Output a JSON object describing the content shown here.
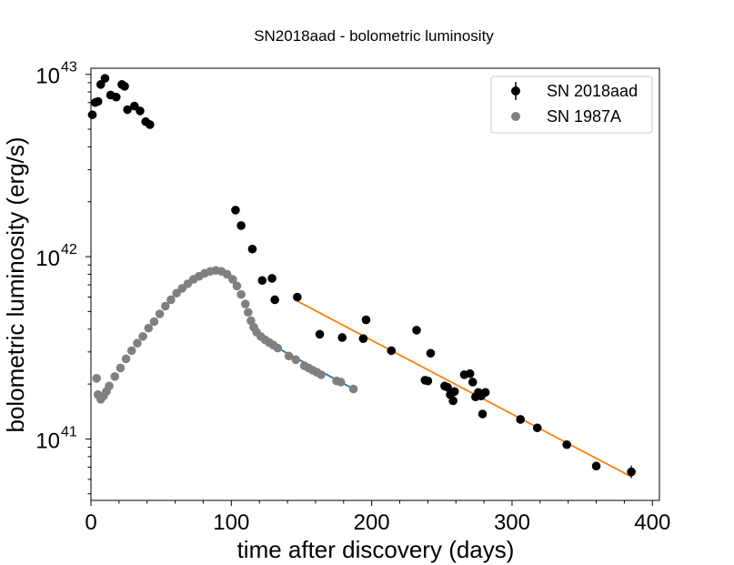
{
  "chart_data": {
    "type": "scatter",
    "title": "SN2018aad - bolometric luminosity",
    "xlabel": "time after discovery (days)",
    "ylabel": "bolometric luminosity (erg/s)",
    "xlim": [
      0,
      405
    ],
    "ylim": [
      4.6e+40,
      1.08e+43
    ],
    "yscale": "log",
    "grid": false,
    "legend_position": "top-right",
    "x_ticks": [
      {
        "value": 0,
        "label": "0"
      },
      {
        "value": 100,
        "label": "100"
      },
      {
        "value": 200,
        "label": "200"
      },
      {
        "value": 300,
        "label": "300"
      },
      {
        "value": 400,
        "label": "400"
      }
    ],
    "y_ticks": [
      {
        "value": 1e+41,
        "base": "10",
        "exp": "41"
      },
      {
        "value": 1e+42,
        "base": "10",
        "exp": "42"
      },
      {
        "value": 1e+43,
        "base": "10",
        "exp": "43"
      }
    ],
    "series": [
      {
        "name": "SN 2018aad",
        "color": "#000000",
        "marker": "circle-errorbar",
        "points": [
          [
            1,
            6e+42
          ],
          [
            3,
            7e+42
          ],
          [
            5,
            7.1e+42
          ],
          [
            7,
            8.8e+42
          ],
          [
            10,
            9.5e+42
          ],
          [
            14,
            7.7e+42
          ],
          [
            18,
            7.5e+42
          ],
          [
            22,
            8.8e+42
          ],
          [
            24,
            8.6e+42
          ],
          [
            26,
            6.4e+42
          ],
          [
            31,
            6.7e+42
          ],
          [
            35,
            6.3e+42
          ],
          [
            39,
            5.5e+42
          ],
          [
            42,
            5.3e+42
          ],
          [
            103,
            1.8e+42
          ],
          [
            107,
            1.48e+42
          ],
          [
            115,
            1.1e+42
          ],
          [
            122,
            7.4e+41
          ],
          [
            129,
            7.6e+41
          ],
          [
            131,
            5.8e+41
          ],
          [
            147,
            6e+41
          ],
          [
            163,
            3.75e+41
          ],
          [
            179,
            3.6e+41
          ],
          [
            194,
            3.55e+41
          ],
          [
            196,
            4.5e+41
          ],
          [
            214,
            3.05e+41
          ],
          [
            232,
            3.95e+41
          ],
          [
            238,
            2.1e+41
          ],
          [
            240,
            2.08e+41
          ],
          [
            242,
            2.95e+41
          ],
          [
            252,
            1.95e+41
          ],
          [
            254,
            1.92e+41
          ],
          [
            256,
            1.75e+41
          ],
          [
            258,
            1.62e+41
          ],
          [
            259,
            1.82e+41
          ],
          [
            266,
            2.25e+41
          ],
          [
            270,
            2.28e+41
          ],
          [
            272,
            2.05e+41
          ],
          [
            274,
            1.7e+41
          ],
          [
            276,
            1.8e+41
          ],
          [
            278,
            1.72e+41
          ],
          [
            279,
            1.37e+41
          ],
          [
            281,
            1.8e+41
          ],
          [
            306,
            1.28e+41
          ],
          [
            318,
            1.15e+41
          ],
          [
            339,
            9.3e+40
          ],
          [
            360,
            7.1e+40
          ],
          [
            385,
            6.6e+40
          ]
        ]
      },
      {
        "name": "SN 1987A",
        "color": "#808080",
        "marker": "circle",
        "points": [
          [
            4,
            2.15e+41
          ],
          [
            5,
            1.75e+41
          ],
          [
            7,
            1.65e+41
          ],
          [
            9,
            1.72e+41
          ],
          [
            11,
            1.82e+41
          ],
          [
            13,
            1.95e+41
          ],
          [
            17,
            2.2e+41
          ],
          [
            21,
            2.45e+41
          ],
          [
            25,
            2.75e+41
          ],
          [
            29,
            3.05e+41
          ],
          [
            33,
            3.35e+41
          ],
          [
            37,
            3.65e+41
          ],
          [
            41,
            4.05e+41
          ],
          [
            45,
            4.4e+41
          ],
          [
            49,
            4.85e+41
          ],
          [
            53,
            5.35e+41
          ],
          [
            57,
            5.8e+41
          ],
          [
            61,
            6.3e+41
          ],
          [
            65,
            6.7e+41
          ],
          [
            69,
            7.1e+41
          ],
          [
            73,
            7.5e+41
          ],
          [
            77,
            7.8e+41
          ],
          [
            81,
            8.1e+41
          ],
          [
            85,
            8.3e+41
          ],
          [
            89,
            8.4e+41
          ],
          [
            93,
            8.3e+41
          ],
          [
            97,
            8e+41
          ],
          [
            101,
            7.5e+41
          ],
          [
            104,
            6.9e+41
          ],
          [
            107,
            6.2e+41
          ],
          [
            110,
            5.5e+41
          ],
          [
            112,
            4.95e+41
          ],
          [
            114,
            4.45e+41
          ],
          [
            116,
            4.1e+41
          ],
          [
            118,
            3.85e+41
          ],
          [
            121,
            3.65e+41
          ],
          [
            124,
            3.5e+41
          ],
          [
            127,
            3.38e+41
          ],
          [
            130,
            3.27e+41
          ],
          [
            133,
            3.15e+41
          ],
          [
            141,
            2.85e+41
          ],
          [
            146,
            2.72e+41
          ],
          [
            152,
            2.52e+41
          ],
          [
            155,
            2.45e+41
          ],
          [
            158,
            2.38e+41
          ],
          [
            161,
            2.32e+41
          ],
          [
            164,
            2.25e+41
          ],
          [
            175,
            2.08e+41
          ],
          [
            178,
            2.05e+41
          ],
          [
            187,
            1.88e+41
          ]
        ]
      }
    ],
    "fit_lines": [
      {
        "color": "#1f77b4",
        "points": [
          [
            133,
            3.15e+41
          ],
          [
            187,
            1.88e+41
          ]
        ]
      },
      {
        "color": "#ff7f0e",
        "points": [
          [
            147,
            5.7e+41
          ],
          [
            385,
            6.2e+40
          ]
        ]
      }
    ]
  }
}
